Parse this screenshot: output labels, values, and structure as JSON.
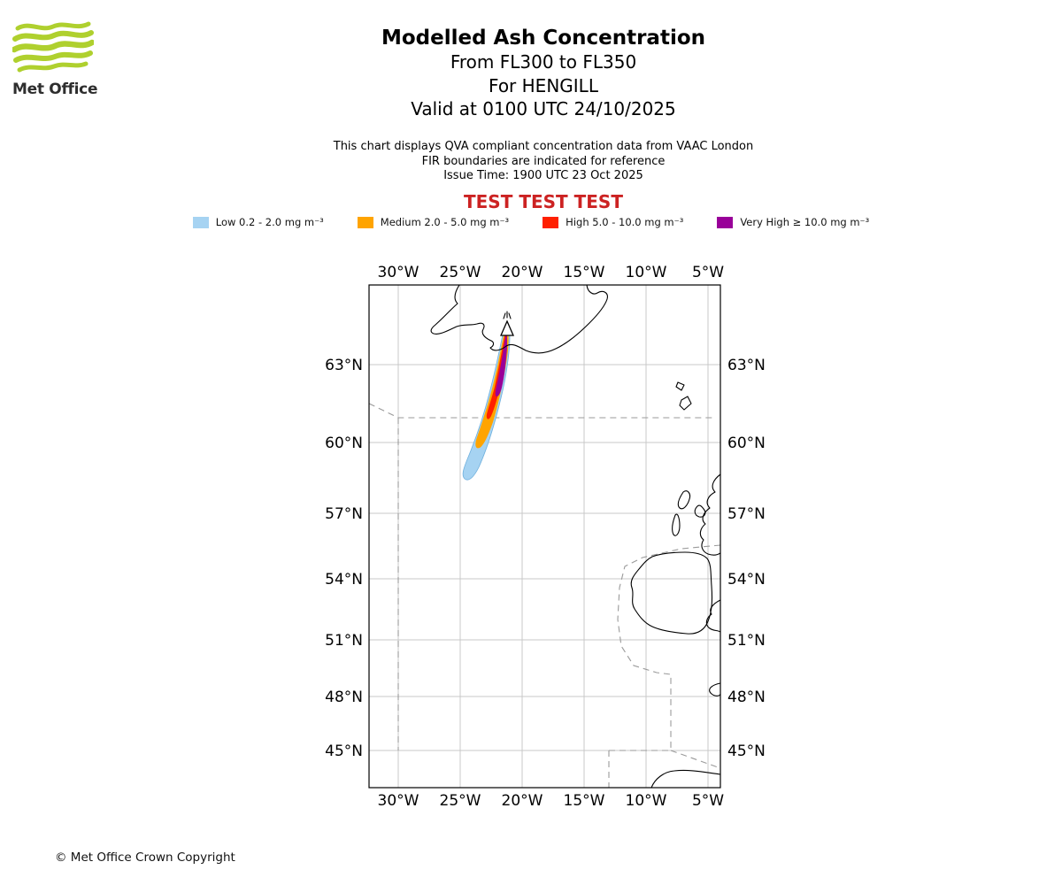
{
  "logo": {
    "brand": "Met Office"
  },
  "header": {
    "title": "Modelled Ash Concentration",
    "subtitle1": "From FL300 to FL350",
    "subtitle2": "For HENGILL",
    "subtitle3": "Valid at 0100 UTC 24/10/2025"
  },
  "notes": {
    "line1": "This chart displays QVA compliant concentration data from VAAC London",
    "line2": "FIR boundaries are indicated for reference",
    "line3": "Issue Time: 1900 UTC 23 Oct 2025"
  },
  "test_banner": "TEST TEST TEST",
  "legend": {
    "items": [
      {
        "name": "low",
        "label": "Low 0.2 - 2.0 mg m⁻³",
        "color": "#a6d3f2"
      },
      {
        "name": "medium",
        "label": "Medium 2.0 - 5.0 mg m⁻³",
        "color": "#ffa400"
      },
      {
        "name": "high",
        "label": "High 5.0 - 10.0 mg m⁻³",
        "color": "#ff2000"
      },
      {
        "name": "very_high",
        "label": "Very High ≥ 10.0 mg m⁻³",
        "color": "#990099"
      }
    ]
  },
  "map": {
    "x_tick_labels": [
      "30°W",
      "25°W",
      "20°W",
      "15°W",
      "10°W",
      "5°W"
    ],
    "y_tick_labels": [
      "63°N",
      "60°N",
      "57°N",
      "54°N",
      "51°N",
      "48°N",
      "45°N"
    ]
  },
  "footer": {
    "copyright": "© Met Office Crown Copyright"
  }
}
